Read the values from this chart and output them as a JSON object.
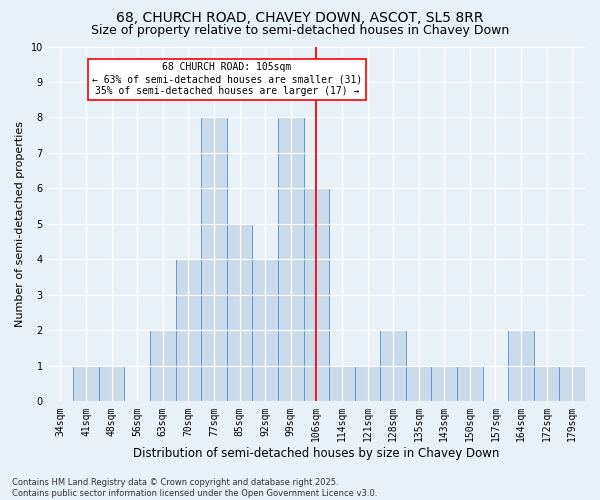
{
  "title1": "68, CHURCH ROAD, CHAVEY DOWN, ASCOT, SL5 8RR",
  "title2": "Size of property relative to semi-detached houses in Chavey Down",
  "xlabel": "Distribution of semi-detached houses by size in Chavey Down",
  "ylabel": "Number of semi-detached properties",
  "footer": "Contains HM Land Registry data © Crown copyright and database right 2025.\nContains public sector information licensed under the Open Government Licence v3.0.",
  "categories": [
    "34sqm",
    "41sqm",
    "48sqm",
    "56sqm",
    "63sqm",
    "70sqm",
    "77sqm",
    "85sqm",
    "92sqm",
    "99sqm",
    "106sqm",
    "114sqm",
    "121sqm",
    "128sqm",
    "135sqm",
    "143sqm",
    "150sqm",
    "157sqm",
    "164sqm",
    "172sqm",
    "179sqm"
  ],
  "values": [
    0,
    1,
    1,
    0,
    2,
    4,
    8,
    5,
    4,
    8,
    6,
    1,
    1,
    2,
    1,
    1,
    1,
    0,
    2,
    1,
    1
  ],
  "bar_color": "#c9daea",
  "bar_edge_color": "#5b9bd5",
  "highlight_index": 10,
  "highlight_color": "#ff0000",
  "annotation_title": "68 CHURCH ROAD: 105sqm",
  "annotation_line1": "← 63% of semi-detached houses are smaller (31)",
  "annotation_line2": "35% of semi-detached houses are larger (17) →",
  "annotation_box_color": "#ffffff",
  "annotation_box_edge": "#ff0000",
  "ylim": [
    0,
    10
  ],
  "yticks": [
    0,
    1,
    2,
    3,
    4,
    5,
    6,
    7,
    8,
    9,
    10
  ],
  "bg_color": "#e8f0f8",
  "grid_color": "#ffffff",
  "title1_fontsize": 10,
  "title2_fontsize": 9,
  "tick_fontsize": 7,
  "ylabel_fontsize": 8,
  "xlabel_fontsize": 8.5,
  "footer_fontsize": 6
}
